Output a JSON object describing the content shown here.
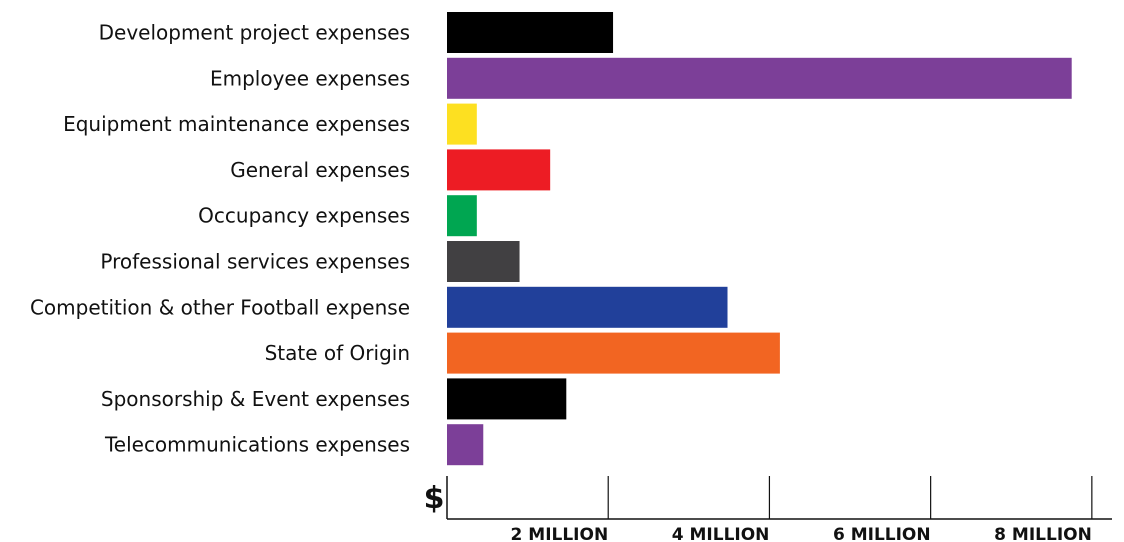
{
  "chart_data": {
    "type": "bar",
    "orientation": "horizontal",
    "title": "",
    "xlabel": "",
    "ylabel": "",
    "currency_symbol": "$",
    "categories": [
      "Development project expenses",
      "Employee expenses",
      "Equipment maintenance expenses",
      "General expenses",
      "Occupancy expenses",
      "Professional services expenses",
      "Competition & other Football expense",
      "State of Origin",
      "Sponsorship & Event expenses",
      "Telecommunications expenses"
    ],
    "values": [
      2060000,
      7750000,
      370000,
      1280000,
      370000,
      900000,
      3480000,
      4130000,
      1480000,
      450000
    ],
    "colors": [
      "#000000",
      "#7c3f98",
      "#fde021",
      "#ed1c24",
      "#00a651",
      "#414042",
      "#21409a",
      "#f26522",
      "#000000",
      "#7c3f98"
    ],
    "xlim": [
      0,
      8250000
    ],
    "ticks": [
      {
        "value": 2000000,
        "label": "2 MILLION"
      },
      {
        "value": 4000000,
        "label": "4 MILLION"
      },
      {
        "value": 6000000,
        "label": "6 MILLION"
      },
      {
        "value": 8000000,
        "label": "8 MILLION"
      }
    ],
    "grid": true,
    "legend": "none"
  }
}
